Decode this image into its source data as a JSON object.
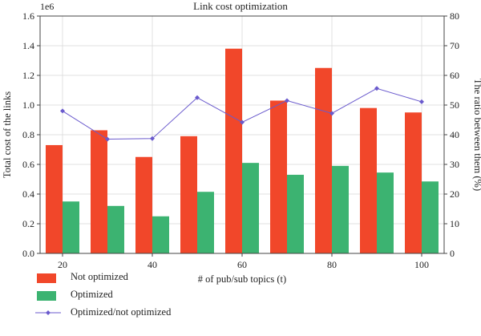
{
  "chart_data": {
    "type": "bar",
    "title": "Link cost optimization",
    "xlabel": "# of pub/sub topics (t)",
    "ylabel": "Total cost of the links",
    "ylabel_right": "The ratio between them (%)",
    "y_multiplier": "1e6",
    "categories": [
      "20",
      "30",
      "40",
      "50",
      "60",
      "70",
      "80",
      "90",
      "100"
    ],
    "x_tick_labels": [
      "20",
      "40",
      "60",
      "80",
      "100"
    ],
    "ylim": [
      0,
      1.6
    ],
    "y_ticks": [
      "0.0",
      "0.2",
      "0.4",
      "0.6",
      "0.8",
      "1.0",
      "1.2",
      "1.4",
      "1.6"
    ],
    "ylim_right": [
      0,
      80
    ],
    "y_ticks_right": [
      "0",
      "10",
      "20",
      "30",
      "40",
      "50",
      "60",
      "70",
      "80"
    ],
    "series": [
      {
        "name": "Not optimized",
        "axis": "left",
        "kind": "bar",
        "color": "#f1472a",
        "values": [
          0.73,
          0.83,
          0.65,
          0.79,
          1.38,
          1.03,
          1.25,
          0.98,
          0.95
        ]
      },
      {
        "name": "Optimized",
        "axis": "left",
        "kind": "bar",
        "color": "#3cb371",
        "values": [
          0.35,
          0.32,
          0.25,
          0.415,
          0.61,
          0.53,
          0.59,
          0.545,
          0.485
        ]
      },
      {
        "name": "Optimized/not optimized",
        "axis": "right",
        "kind": "line",
        "color": "#6a5acd",
        "values": [
          48,
          38.5,
          38.7,
          52.5,
          44.2,
          51.5,
          47.2,
          55.6,
          51.1
        ]
      }
    ],
    "grid": true,
    "legend_position": "bottom-left"
  }
}
